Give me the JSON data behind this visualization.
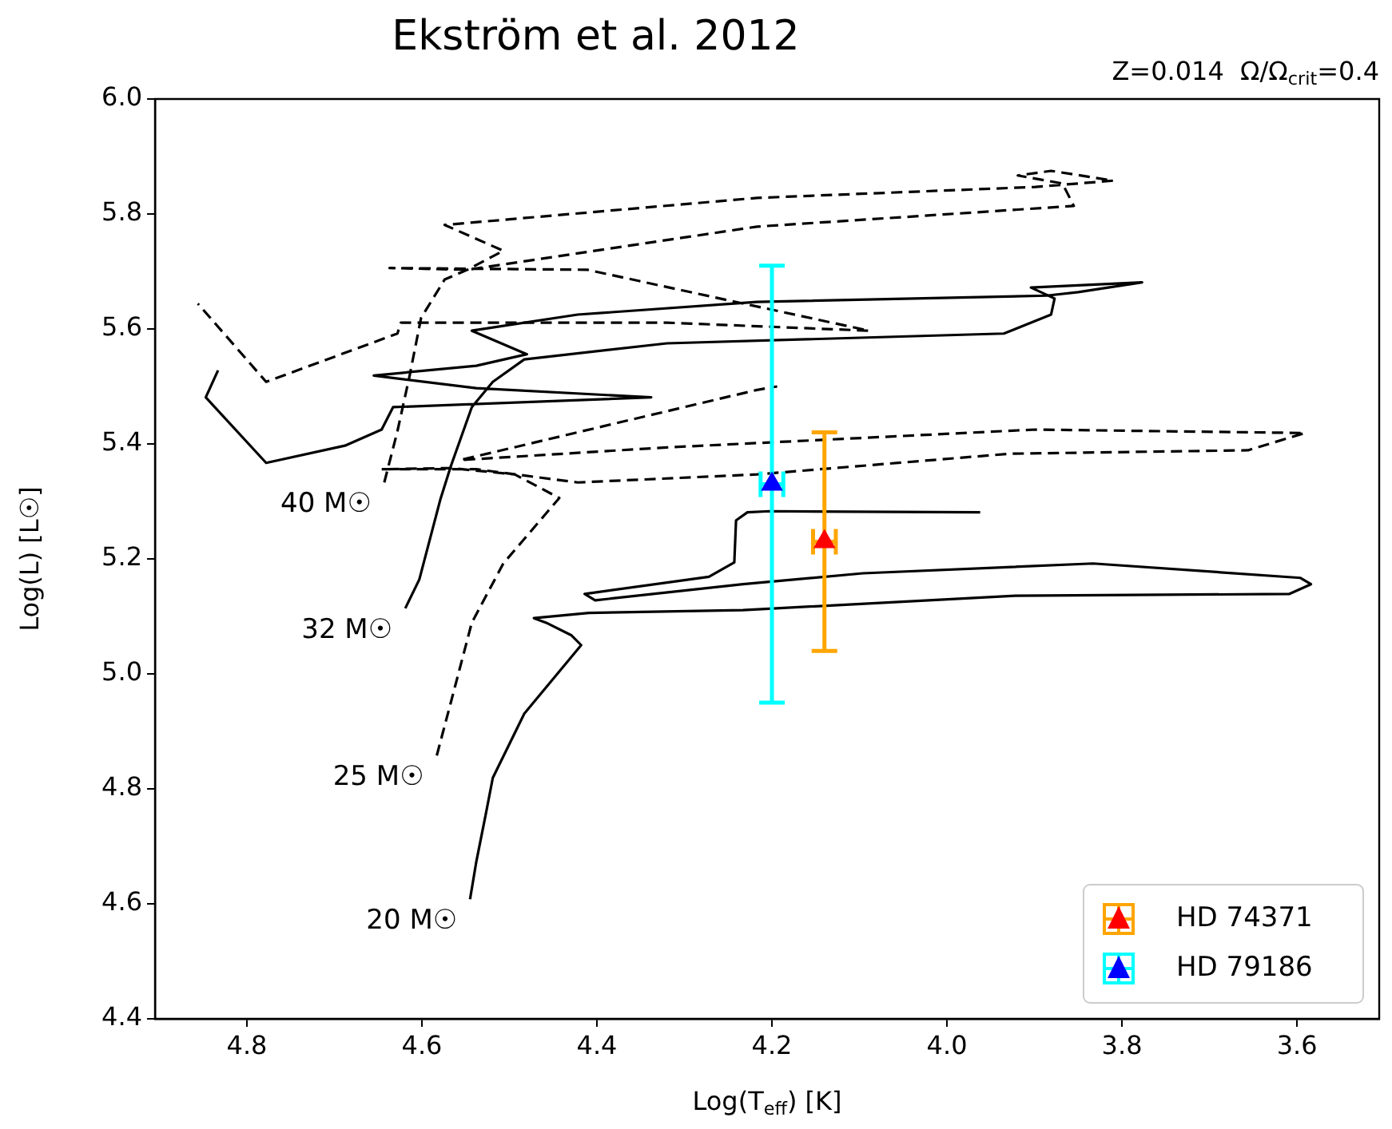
{
  "chart_data": {
    "type": "line",
    "title": "Ekström et al. 2012",
    "subtitle": "Z=0.014  Ω/Ω$_{crit}$=0.4",
    "xlabel": "Log(T$_{eff}$) [K]",
    "ylabel": "Log(L) [L☉]",
    "xlim": [
      4.905,
      3.506
    ],
    "ylim": [
      4.4,
      6.0
    ],
    "xticks": [
      4.8,
      4.6,
      4.4,
      4.2,
      {
        "value": 4,
        "label": "4.0"
      },
      3.8,
      3.6
    ],
    "yticks": [
      4.4,
      4.6,
      4.8,
      {
        "value": 5,
        "label": "5.0"
      },
      5.2,
      5.4,
      5.6,
      5.8,
      {
        "value": 6,
        "label": "6.0"
      }
    ],
    "legend": "bottom right",
    "series": [
      {
        "name": "40 M☉",
        "line_style": "dashed",
        "color": "#000000",
        "x": [
          4.643,
          4.628,
          4.614,
          4.601,
          4.574,
          4.548,
          4.507,
          4.574,
          4.217,
          3.899,
          3.81,
          3.881,
          3.919,
          3.868,
          3.855,
          4.217,
          4.548,
          4.637,
          4.411,
          4.302,
          4.089,
          4.32,
          4.624,
          4.628,
          4.778,
          4.856
        ],
        "values": [
          5.333,
          5.422,
          5.519,
          5.619,
          5.686,
          5.703,
          5.736,
          5.781,
          5.828,
          5.847,
          5.858,
          5.875,
          5.867,
          5.853,
          5.814,
          5.778,
          5.703,
          5.706,
          5.703,
          5.667,
          5.597,
          5.611,
          5.611,
          5.592,
          5.508,
          5.644
        ]
      },
      {
        "name": "32 M☉",
        "line_style": "solid",
        "color": "#000000",
        "x": [
          4.619,
          4.603,
          4.579,
          4.567,
          4.543,
          4.519,
          4.483,
          4.32,
          3.935,
          3.881,
          3.877,
          3.904,
          3.777,
          3.85,
          3.886,
          4.217,
          4.422,
          4.543,
          4.48,
          4.538,
          4.655,
          4.538,
          4.338,
          4.633,
          4.646,
          4.688,
          4.778,
          4.847,
          4.833
        ],
        "values": [
          5.114,
          5.164,
          5.303,
          5.361,
          5.464,
          5.508,
          5.547,
          5.575,
          5.592,
          5.625,
          5.653,
          5.672,
          5.681,
          5.664,
          5.658,
          5.647,
          5.625,
          5.597,
          5.556,
          5.536,
          5.519,
          5.497,
          5.481,
          5.464,
          5.425,
          5.397,
          5.367,
          5.481,
          5.528
        ]
      },
      {
        "name": "25 M☉",
        "line_style": "dashed",
        "color": "#000000",
        "x": [
          4.583,
          4.567,
          4.543,
          4.507,
          4.443,
          4.494,
          4.567,
          4.646,
          4.538,
          4.422,
          4.217,
          3.928,
          3.656,
          3.591,
          3.899,
          4.32,
          4.556,
          4.217,
          4.194
        ],
        "values": [
          4.858,
          4.95,
          5.089,
          5.192,
          5.306,
          5.347,
          5.358,
          5.356,
          5.356,
          5.333,
          5.347,
          5.383,
          5.389,
          5.419,
          5.425,
          5.394,
          5.372,
          5.494,
          5.5
        ]
      },
      {
        "name": "20 M☉",
        "line_style": "solid",
        "color": "#000000",
        "x": [
          4.545,
          4.538,
          4.527,
          4.519,
          4.483,
          4.447,
          4.418,
          4.429,
          4.458,
          4.472,
          4.409,
          4.233,
          3.922,
          3.609,
          3.584,
          3.596,
          3.833,
          4.096,
          4.233,
          4.402,
          4.414,
          4.272,
          4.243,
          4.241,
          4.228,
          4.203,
          3.962
        ],
        "values": [
          4.608,
          4.672,
          4.756,
          4.819,
          4.931,
          4.997,
          5.05,
          5.067,
          5.089,
          5.097,
          5.106,
          5.111,
          5.136,
          5.139,
          5.156,
          5.167,
          5.192,
          5.175,
          5.156,
          5.128,
          5.139,
          5.169,
          5.194,
          5.267,
          5.281,
          5.283,
          5.281
        ]
      },
      {
        "name": "HD 74371",
        "type": "scatter",
        "marker": "triangle",
        "color": "#ffa500",
        "colors": [
          "#ff0000"
        ],
        "x": [
          4.14
        ],
        "values": [
          5.23
        ],
        "errors": [
          [
            5.04,
            5.42
          ]
        ],
        "xerrors": [
          0.013
        ]
      },
      {
        "name": "HD 79186",
        "type": "scatter",
        "marker": "triangle",
        "color": "#00ffff",
        "colors": [
          "#0000ff"
        ],
        "x": [
          4.2
        ],
        "values": [
          5.33
        ],
        "errors": [
          [
            4.95,
            5.71
          ]
        ],
        "xerrors": [
          0.013
        ]
      }
    ]
  }
}
